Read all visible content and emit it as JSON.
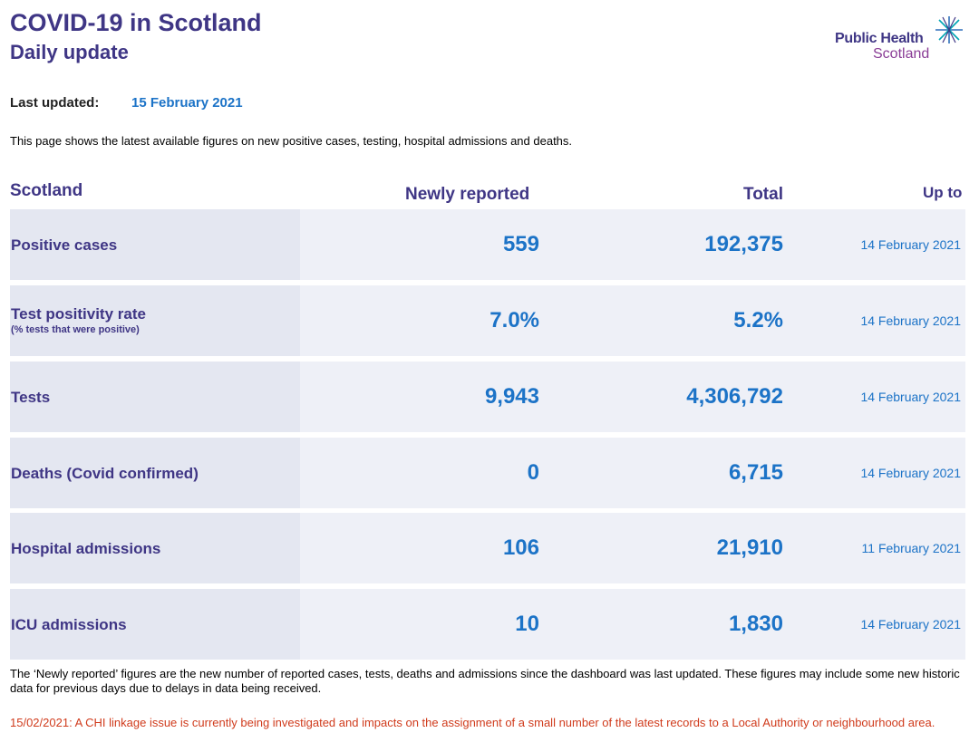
{
  "header": {
    "title": "COVID-19 in Scotland",
    "subtitle": "Daily update",
    "logo_line1": "Public Health",
    "logo_line2": "Scotland"
  },
  "updated": {
    "label": "Last updated:",
    "date": "15 February 2021"
  },
  "intro": "This page shows the latest available figures on new positive cases, testing, hospital admissions and deaths.",
  "table": {
    "headers": {
      "region": "Scotland",
      "new": "Newly reported",
      "total": "Total",
      "upto": "Up to"
    },
    "rows": [
      {
        "label": "Positive cases",
        "sublabel": "",
        "new": "559",
        "total": "192,375",
        "upto": "14 February 2021"
      },
      {
        "label": "Test positivity rate",
        "sublabel": "(% tests that were positive)",
        "new": "7.0%",
        "total": "5.2%",
        "upto": "14 February 2021"
      },
      {
        "label": "Tests",
        "sublabel": "",
        "new": "9,943",
        "total": "4,306,792",
        "upto": "14 February 2021"
      },
      {
        "label": "Deaths (Covid confirmed)",
        "sublabel": "",
        "new": "0",
        "total": "6,715",
        "upto": "14 February 2021"
      },
      {
        "label": "Hospital admissions",
        "sublabel": "",
        "new": "106",
        "total": "21,910",
        "upto": "11 February 2021"
      },
      {
        "label": "ICU admissions",
        "sublabel": "",
        "new": "10",
        "total": "1,830",
        "upto": "14 February 2021"
      }
    ]
  },
  "note": "The ‘Newly reported’ figures are the new number of reported cases, tests, deaths and admissions since the dashboard was last updated. These figures may include some new historic data for previous days due to delays in data being received.",
  "warning": "15/02/2021: A CHI linkage issue is currently being investigated and impacts on the assignment of a small number of the latest records to a Local Authority or neighbourhood area.",
  "colors": {
    "brand": "#3f3685",
    "accent": "#1c73c7",
    "alert": "#d03b1c",
    "row_bg": "#eef0f7",
    "label_bg": "#e4e7f1"
  },
  "icons": {
    "logo": "phs-star-icon"
  }
}
